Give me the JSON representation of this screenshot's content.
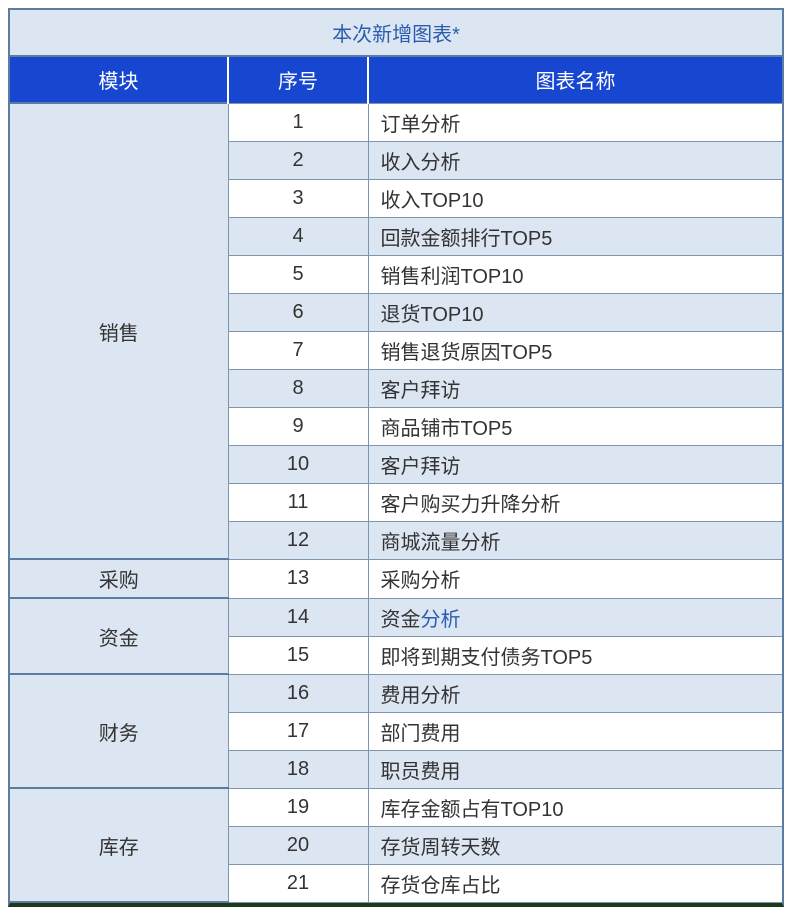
{
  "table": {
    "title": "本次新增图表*",
    "headers": {
      "module": "模块",
      "seq": "序号",
      "name": "图表名称"
    },
    "modules": [
      {
        "name": "销售",
        "rows": [
          {
            "seq": "1",
            "name": "订单分析",
            "alt": false
          },
          {
            "seq": "2",
            "name": "收入分析",
            "alt": true
          },
          {
            "seq": "3",
            "name": "收入TOP10",
            "alt": false
          },
          {
            "seq": "4",
            "name": "回款金额排行TOP5",
            "alt": true
          },
          {
            "seq": "5",
            "name": "销售利润TOP10",
            "alt": false
          },
          {
            "seq": "6",
            "name": "退货TOP10",
            "alt": true
          },
          {
            "seq": "7",
            "name": "销售退货原因TOP5",
            "alt": false
          },
          {
            "seq": "8",
            "name": "客户拜访",
            "alt": true
          },
          {
            "seq": "9",
            "name": "商品铺市TOP5",
            "alt": false
          },
          {
            "seq": "10",
            "name": "客户拜访",
            "alt": true
          },
          {
            "seq": "11",
            "name": "客户购买力升降分析",
            "alt": false
          },
          {
            "seq": "12",
            "name": "商城流量分析",
            "alt": true
          }
        ]
      },
      {
        "name": "采购",
        "rows": [
          {
            "seq": "13",
            "name": "采购分析",
            "alt": false
          }
        ]
      },
      {
        "name": "资金",
        "rows": [
          {
            "seq": "14",
            "name_prefix": "资金",
            "name_suffix": "分析",
            "alt": true,
            "split": true
          },
          {
            "seq": "15",
            "name": "即将到期支付债务TOP5",
            "alt": false
          }
        ]
      },
      {
        "name": "财务",
        "rows": [
          {
            "seq": "16",
            "name": "费用分析",
            "alt": true
          },
          {
            "seq": "17",
            "name": "部门费用",
            "alt": false
          },
          {
            "seq": "18",
            "name": "职员费用",
            "alt": true
          }
        ]
      },
      {
        "name": "库存",
        "rows": [
          {
            "seq": "19",
            "name": "库存金额占有TOP10",
            "alt": false
          },
          {
            "seq": "20",
            "name": "存货周转天数",
            "alt": true
          },
          {
            "seq": "21",
            "name": "存货仓库占比",
            "alt": false
          }
        ]
      }
    ]
  }
}
